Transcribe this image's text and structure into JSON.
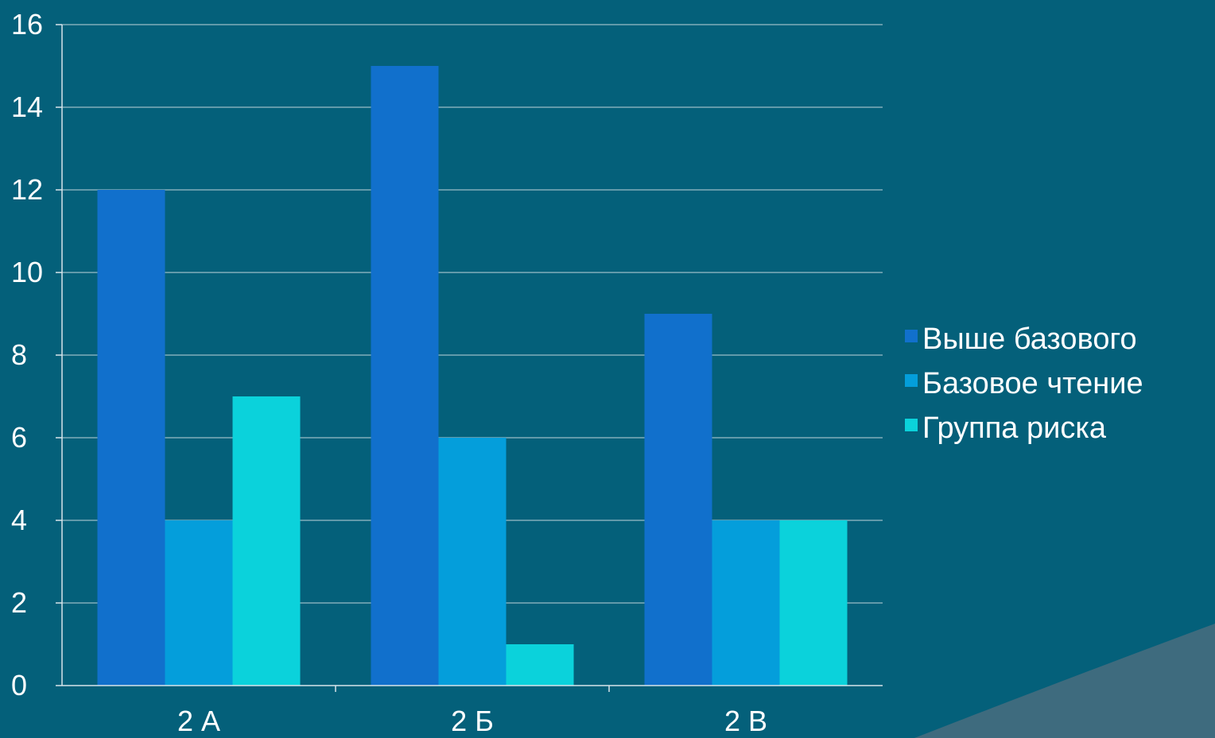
{
  "colors": {
    "background": "#04607A",
    "corner_accent": "#3E6B7E",
    "gridline": "#BFD3DB",
    "axis": "#D8E4EA"
  },
  "chart_data": {
    "type": "bar",
    "categories": [
      "2 А",
      "2 Б",
      "2 В"
    ],
    "series": [
      {
        "name": "Выше базового",
        "values": [
          12,
          15,
          9
        ],
        "color": "#1170CC"
      },
      {
        "name": "Базовое  чтение",
        "values": [
          4,
          6,
          4
        ],
        "color": "#049EDB"
      },
      {
        "name": "Группа риска",
        "values": [
          7,
          1,
          4
        ],
        "color": "#0BD2DB"
      }
    ],
    "ylim": [
      0,
      16
    ],
    "yticks": [
      0,
      2,
      4,
      6,
      8,
      10,
      12,
      14,
      16
    ],
    "grid": true,
    "legend_position": "right",
    "title": "",
    "xlabel": "",
    "ylabel": ""
  }
}
